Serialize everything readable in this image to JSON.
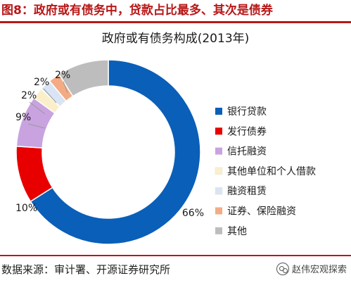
{
  "figure": {
    "title": "图8：政府或有债务中，贷款占比最多、其次是债券",
    "source": "数据来源：审计署、开源证券研究所",
    "watermark": "赵伟宏观探索"
  },
  "chart_data": {
    "type": "pie",
    "variant": "donut",
    "title": "政府或有债务构成(2013年)",
    "categories": [
      "银行贷款",
      "发行债券",
      "信托融资",
      "其他单位和个人借款",
      "融资租赁",
      "证券、保险融资",
      "其他"
    ],
    "values": [
      66,
      10,
      9,
      2,
      2,
      2,
      9
    ],
    "data_labels": [
      "66%",
      "10%",
      "9%",
      "2%",
      "2%",
      "2%",
      ""
    ],
    "colors": [
      "#0a5fb8",
      "#e80000",
      "#c9a3e0",
      "#fbefc9",
      "#d9e4f4",
      "#f4ab83",
      "#bdbdbd"
    ],
    "legend_position": "right"
  }
}
